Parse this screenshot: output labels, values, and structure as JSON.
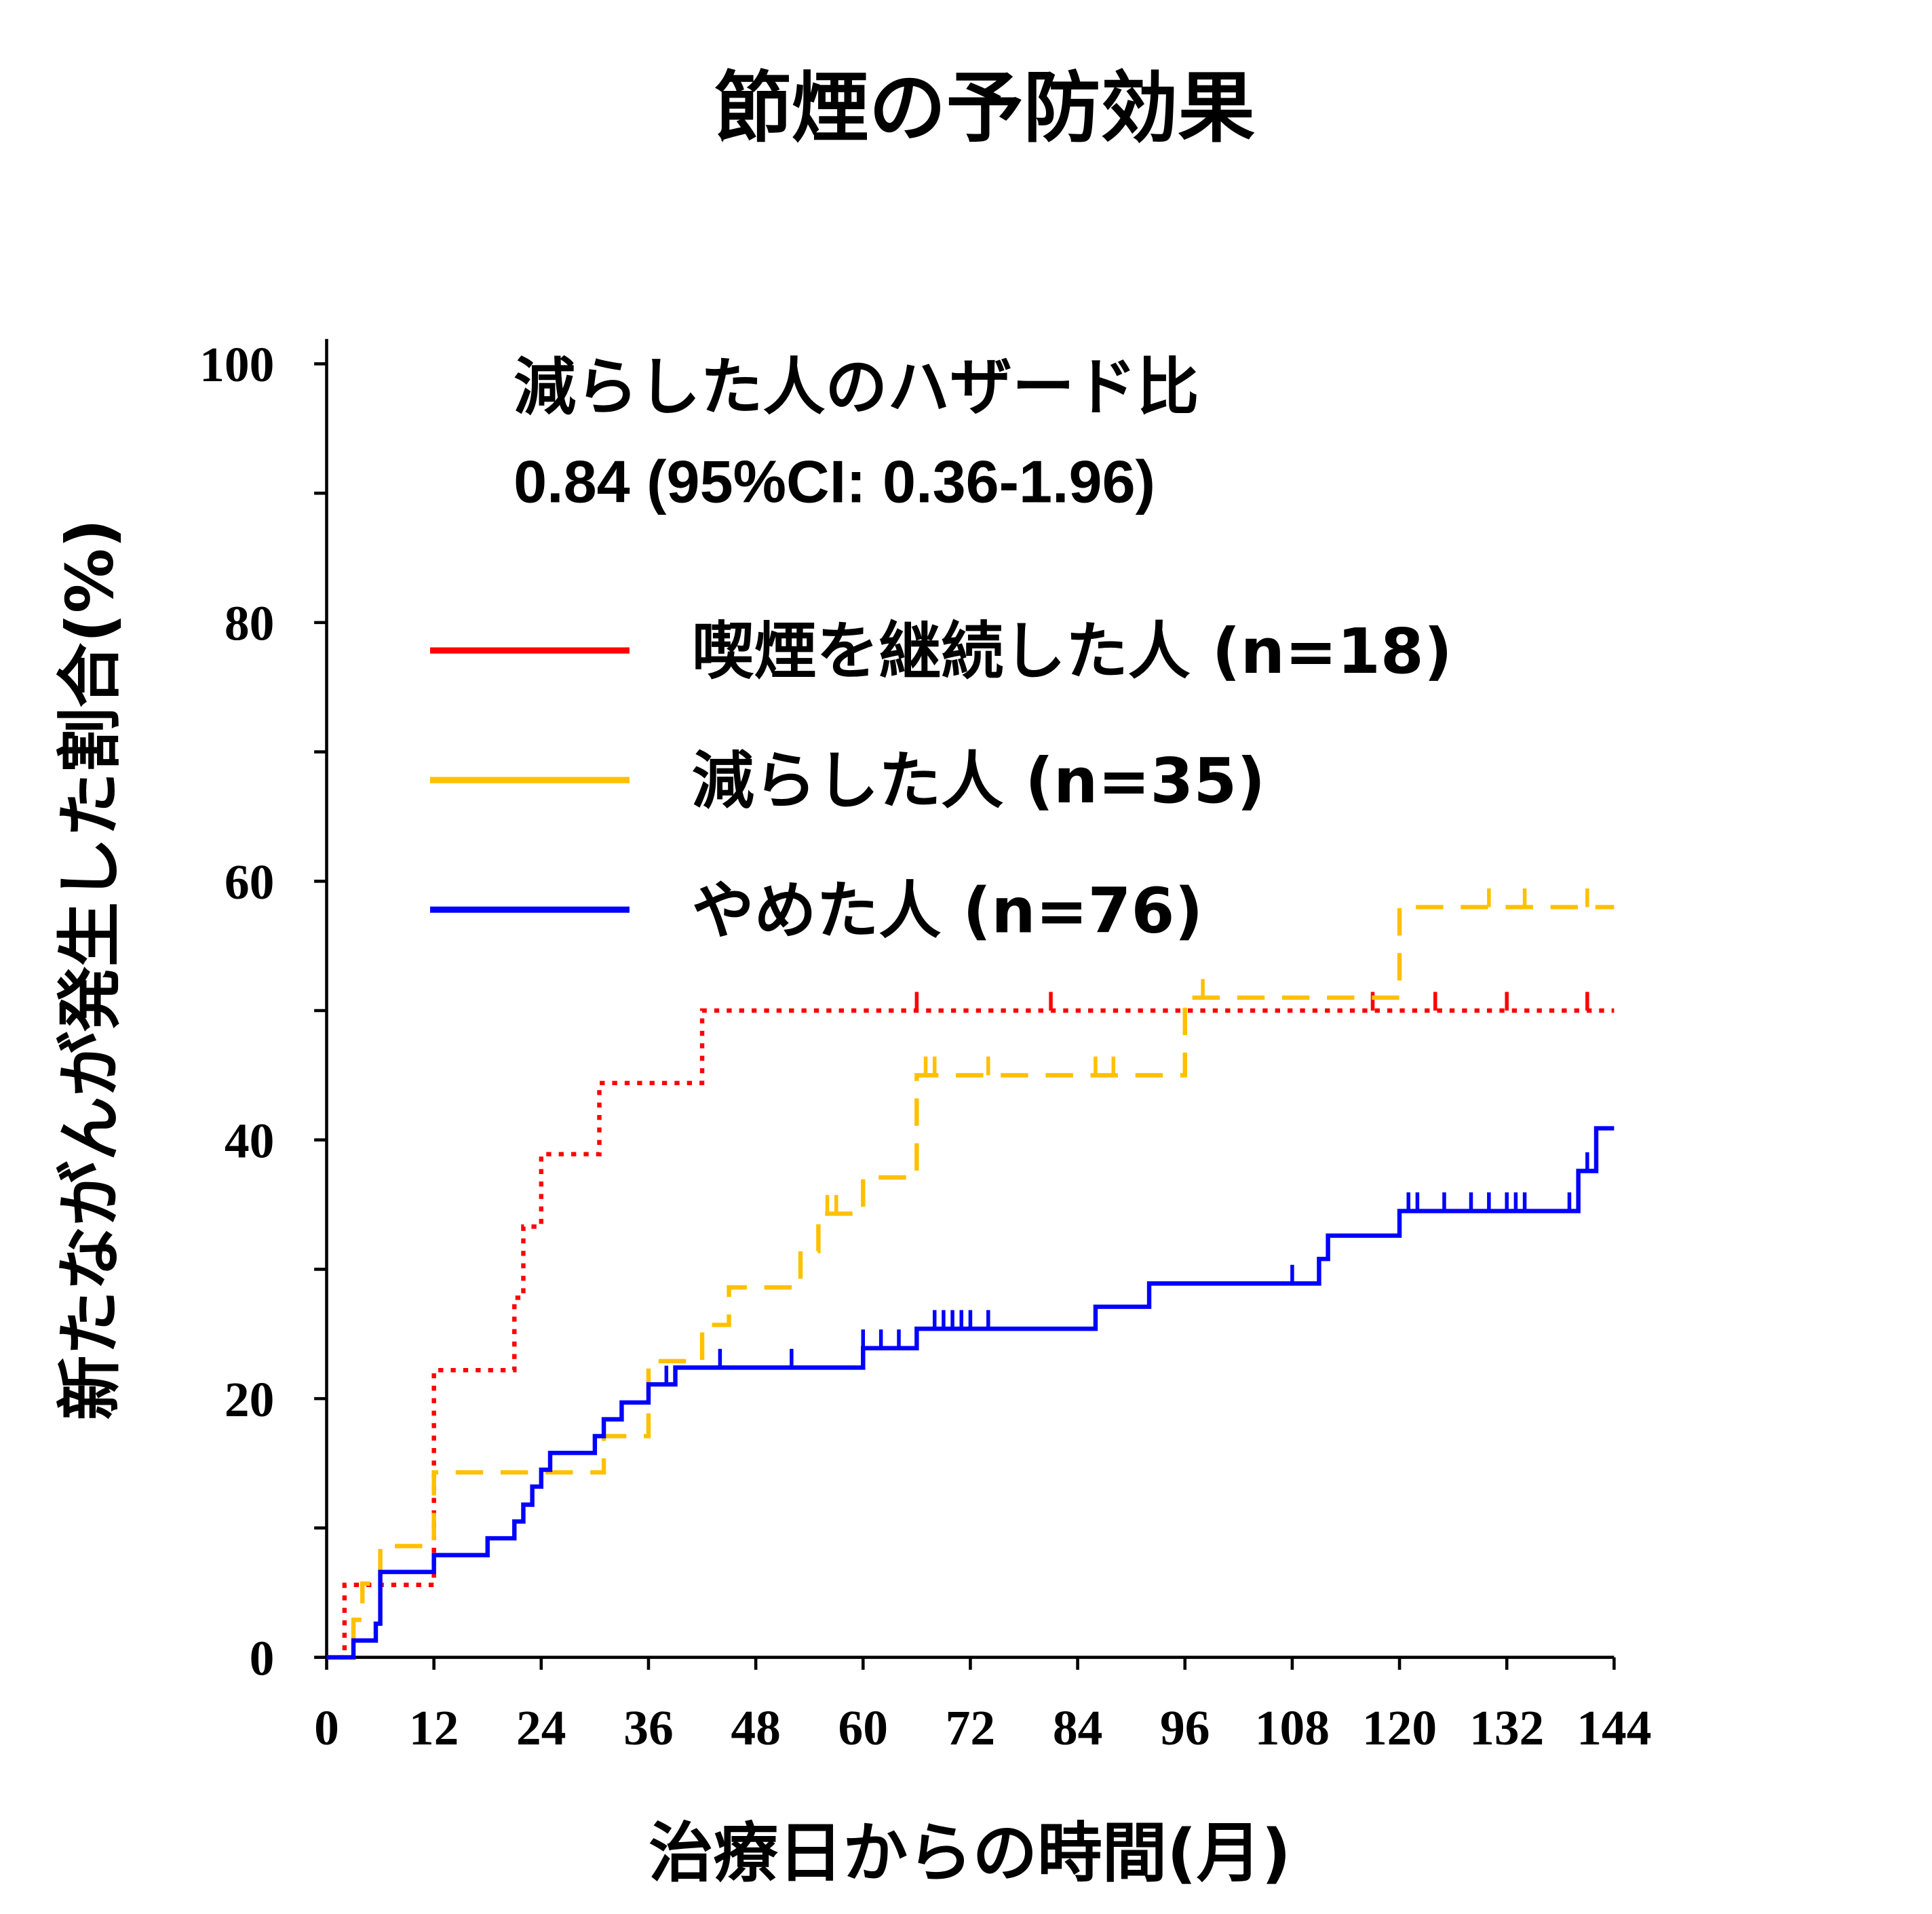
{
  "chart_data": {
    "type": "line",
    "step": true,
    "title": "節煙の予防効果",
    "xlabel": "治療日からの時間(月)",
    "ylabel": "新たながんが発生した割合(%)",
    "xlim": [
      0,
      144
    ],
    "ylim": [
      0,
      100
    ],
    "xticks": [
      "0",
      "12",
      "24",
      "36",
      "48",
      "60",
      "72",
      "84",
      "96",
      "108",
      "120",
      "132",
      "144"
    ],
    "yticks": [
      "0",
      "20",
      "40",
      "60",
      "80",
      "100"
    ],
    "grid": false,
    "legend_placement": "top-left",
    "annotation": {
      "line1": "減らした人のハザード比",
      "line2": "0.84 (95%CI: 0.36-1.96)"
    },
    "series": [
      {
        "name": "喫煙を継続した人 (n=18)",
        "color": "#ff0000",
        "style": "dotted",
        "points": [
          [
            0,
            0
          ],
          [
            2,
            5.6
          ],
          [
            12,
            22.2
          ],
          [
            21,
            27.8
          ],
          [
            22,
            33.3
          ],
          [
            24,
            38.9
          ],
          [
            30.5,
            44.4
          ],
          [
            42,
            50
          ],
          [
            144,
            50
          ]
        ],
        "censored": [
          66,
          81,
          117,
          124,
          132,
          141
        ]
      },
      {
        "name": "減らした人 (n=35)",
        "color": "#ffc000",
        "style": "dashed",
        "points": [
          [
            0,
            0
          ],
          [
            3,
            2.9
          ],
          [
            4,
            5.7
          ],
          [
            6,
            8.6
          ],
          [
            12,
            14.3
          ],
          [
            31,
            17.1
          ],
          [
            36,
            22.9
          ],
          [
            42,
            25.7
          ],
          [
            45,
            28.6
          ],
          [
            53,
            31.4
          ],
          [
            55,
            34.3
          ],
          [
            60,
            37.1
          ],
          [
            66,
            45
          ],
          [
            96,
            51
          ],
          [
            120,
            58
          ],
          [
            144,
            58
          ]
        ],
        "censored": [
          56,
          57,
          67,
          68,
          74,
          86,
          88,
          98,
          130,
          134,
          141
        ]
      },
      {
        "name": "やめた人 (n=76)",
        "color": "#0000ff",
        "style": "solid",
        "points": [
          [
            0,
            0
          ],
          [
            3,
            1.3
          ],
          [
            5.5,
            2.6
          ],
          [
            6,
            6.6
          ],
          [
            12,
            7.9
          ],
          [
            18,
            9.2
          ],
          [
            21,
            10.5
          ],
          [
            22,
            11.8
          ],
          [
            23,
            13.2
          ],
          [
            24,
            14.5
          ],
          [
            25,
            15.8
          ],
          [
            30,
            17.1
          ],
          [
            31,
            18.4
          ],
          [
            33,
            19.7
          ],
          [
            36,
            21.1
          ],
          [
            39,
            22.4
          ],
          [
            60,
            23.9
          ],
          [
            66,
            25.4
          ],
          [
            86,
            27.1
          ],
          [
            92,
            28.9
          ],
          [
            111,
            30.8
          ],
          [
            112,
            32.6
          ],
          [
            120,
            34.5
          ],
          [
            140,
            37.6
          ],
          [
            142,
            40.9
          ],
          [
            144,
            40.9
          ]
        ],
        "censored": [
          38,
          44,
          52,
          60,
          62,
          64,
          68,
          69,
          70,
          71,
          72,
          74,
          108,
          121,
          122,
          125,
          128,
          130,
          132,
          133,
          134,
          139,
          141
        ]
      }
    ]
  }
}
